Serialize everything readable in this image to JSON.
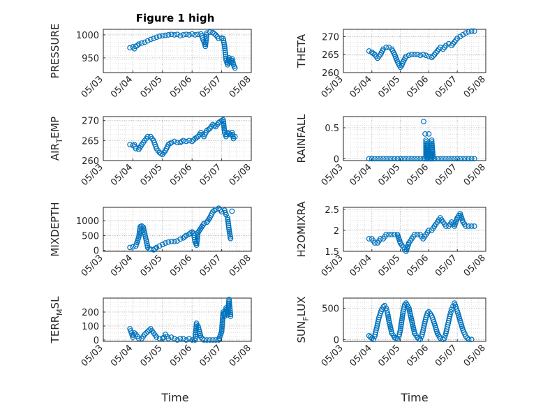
{
  "figure": {
    "title": "Figure 1 high",
    "marker_color": "#0072BD",
    "grid": "dotted",
    "xlabel": "Time",
    "x_tick_labels": [
      "05/03",
      "05/04",
      "05/05",
      "05/06",
      "05/07",
      "05/08"
    ]
  },
  "chart_data": [
    {
      "type": "scatter",
      "ylabel": "PRESSURE",
      "ylim": [
        918,
        1012
      ],
      "yticks": [
        950,
        1000
      ],
      "ytick_labels": [
        "950",
        "1000"
      ],
      "x": [
        3.9,
        4.0,
        4.05,
        4.1,
        4.15,
        4.2,
        4.3,
        4.4,
        4.5,
        4.6,
        4.7,
        4.8,
        4.9,
        5.0,
        5.1,
        5.2,
        5.3,
        5.4,
        5.5,
        5.6,
        5.7,
        5.8,
        5.9,
        6.0,
        6.1,
        6.2,
        6.3,
        6.4,
        6.45,
        6.5,
        6.6,
        6.7,
        6.8,
        6.9,
        7.0,
        7.05,
        7.1,
        7.15,
        7.2,
        7.25,
        7.3,
        7.35,
        7.4,
        7.45
      ],
      "y": [
        972,
        974,
        970,
        975,
        977,
        980,
        982,
        984,
        987,
        990,
        992,
        995,
        997,
        998,
        999,
        1000,
        1001,
        1000,
        1001,
        998,
        1000,
        1001,
        1000,
        1002,
        1000,
        1001,
        1002,
        985,
        975,
        1004,
        1006,
        1005,
        1000,
        992,
        993,
        992,
        975,
        945,
        935,
        950,
        940,
        948,
        935,
        928
      ]
    },
    {
      "type": "scatter",
      "ylabel": "THETA",
      "ylim": [
        260,
        272
      ],
      "yticks": [
        260,
        265,
        270
      ],
      "ytick_labels": [
        "260",
        "265",
        "270"
      ],
      "x": [
        3.9,
        4.0,
        4.1,
        4.2,
        4.3,
        4.4,
        4.5,
        4.6,
        4.7,
        4.8,
        4.9,
        5.0,
        5.05,
        5.1,
        5.2,
        5.3,
        5.4,
        5.5,
        5.6,
        5.7,
        5.8,
        5.9,
        6.0,
        6.1,
        6.2,
        6.3,
        6.4,
        6.5,
        6.6,
        6.7,
        6.8,
        6.9,
        7.0,
        7.1,
        7.2,
        7.3,
        7.4,
        7.5,
        7.6
      ],
      "y": [
        266,
        265.6,
        265,
        264,
        265,
        266.5,
        267,
        267,
        266.5,
        265,
        263,
        261.5,
        262,
        263,
        264.5,
        264.8,
        265,
        265,
        265,
        264.8,
        265,
        264.8,
        264.5,
        264.2,
        265,
        266,
        267,
        266.5,
        267.5,
        268,
        267.5,
        268.5,
        269.5,
        270,
        270.5,
        271,
        271.3,
        271.5,
        271.5
      ]
    },
    {
      "type": "scatter",
      "ylabel": "AIR_TEMP",
      "ylim": [
        260,
        271
      ],
      "yticks": [
        260,
        265,
        270
      ],
      "ytick_labels": [
        "260",
        "265",
        "270"
      ],
      "x": [
        3.9,
        4.0,
        4.05,
        4.1,
        4.2,
        4.3,
        4.4,
        4.5,
        4.6,
        4.7,
        4.8,
        4.9,
        5.0,
        5.1,
        5.2,
        5.3,
        5.4,
        5.5,
        5.6,
        5.7,
        5.8,
        5.9,
        6.0,
        6.1,
        6.2,
        6.3,
        6.4,
        6.5,
        6.6,
        6.7,
        6.8,
        6.9,
        7.0,
        7.05,
        7.1,
        7.15,
        7.2,
        7.3,
        7.35,
        7.4,
        7.45
      ],
      "y": [
        264,
        263.8,
        264,
        263,
        262.8,
        264,
        265,
        266,
        266,
        265,
        263,
        262,
        261.5,
        262.5,
        264,
        264.5,
        264.8,
        264.5,
        264.5,
        265,
        264.8,
        265,
        264.8,
        265.5,
        266,
        267,
        266,
        267.5,
        268,
        269,
        268.5,
        269.5,
        270,
        270.2,
        267,
        266,
        267,
        266.5,
        267,
        265.5,
        266
      ]
    },
    {
      "type": "scatter",
      "ylabel": "RAINFALL",
      "ylim": [
        -0.03,
        0.68
      ],
      "yticks": [
        0,
        0.5
      ],
      "ytick_labels": [
        "0",
        "0.5"
      ],
      "x": [
        3.9,
        4.0,
        4.1,
        4.2,
        4.3,
        4.4,
        4.5,
        4.6,
        4.7,
        4.8,
        4.9,
        5.0,
        5.1,
        5.2,
        5.3,
        5.4,
        5.5,
        5.6,
        5.7,
        5.8,
        5.85,
        5.9,
        5.95,
        6.0,
        6.05,
        6.1,
        6.15,
        6.2,
        6.3,
        6.4,
        6.5,
        6.6,
        6.7,
        6.8,
        6.9,
        7.0,
        7.1,
        7.2,
        7.3,
        7.4,
        7.5,
        7.6,
        5.82,
        5.87,
        5.9,
        5.95,
        6.0,
        6.05,
        6.1
      ],
      "y": [
        0,
        0,
        0,
        0,
        0,
        0,
        0,
        0,
        0,
        0,
        0,
        0,
        0,
        0,
        0,
        0,
        0,
        0,
        0,
        0,
        0,
        0,
        0,
        0,
        0,
        0,
        0,
        0,
        0,
        0,
        0,
        0,
        0,
        0,
        0,
        0,
        0,
        0,
        0,
        0,
        0,
        0,
        0.6,
        0.4,
        0.3,
        0.2,
        0.4,
        0.1,
        0.3
      ]
    },
    {
      "type": "scatter",
      "ylabel": "MIXDEPTH",
      "ylim": [
        -30,
        1450
      ],
      "yticks": [
        0,
        500,
        1000
      ],
      "ytick_labels": [
        "0",
        "500",
        "1000"
      ],
      "x": [
        3.9,
        4.0,
        4.1,
        4.2,
        4.25,
        4.3,
        4.35,
        4.4,
        4.45,
        4.5,
        4.55,
        4.6,
        4.7,
        4.8,
        4.9,
        5.0,
        5.1,
        5.2,
        5.3,
        5.4,
        5.5,
        5.6,
        5.7,
        5.8,
        5.9,
        6.0,
        6.05,
        6.1,
        6.15,
        6.2,
        6.3,
        6.4,
        6.5,
        6.6,
        6.7,
        6.8,
        6.9,
        7.0,
        7.1,
        7.15,
        7.2,
        7.25,
        7.3,
        7.35
      ],
      "y": [
        100,
        120,
        150,
        450,
        800,
        820,
        780,
        550,
        350,
        100,
        50,
        40,
        20,
        100,
        150,
        200,
        250,
        280,
        300,
        300,
        320,
        380,
        420,
        500,
        550,
        620,
        580,
        300,
        180,
        600,
        750,
        900,
        950,
        1100,
        1300,
        1380,
        1420,
        1300,
        1350,
        1200,
        1100,
        700,
        400,
        1320
      ]
    },
    {
      "type": "scatter",
      "ylabel": "H2OMIXRA",
      "ylim": [
        1.5,
        2.55
      ],
      "yticks": [
        1.5,
        2,
        2.5
      ],
      "ytick_labels": [
        "1.5",
        "2",
        "2.5"
      ],
      "x": [
        3.9,
        4.0,
        4.1,
        4.2,
        4.3,
        4.4,
        4.5,
        4.6,
        4.7,
        4.8,
        4.9,
        5.0,
        5.1,
        5.2,
        5.3,
        5.4,
        5.5,
        5.6,
        5.7,
        5.8,
        5.9,
        6.0,
        6.1,
        6.2,
        6.3,
        6.4,
        6.5,
        6.6,
        6.7,
        6.8,
        6.9,
        7.0,
        7.1,
        7.2,
        7.3,
        7.4,
        7.5,
        7.6
      ],
      "y": [
        1.8,
        1.8,
        1.7,
        1.7,
        1.8,
        1.8,
        1.9,
        1.9,
        1.9,
        1.9,
        1.9,
        1.7,
        1.6,
        1.5,
        1.7,
        1.8,
        1.9,
        1.9,
        1.9,
        1.8,
        1.9,
        2.0,
        2.0,
        2.1,
        2.2,
        2.3,
        2.2,
        2.1,
        2.1,
        2.2,
        2.1,
        2.3,
        2.4,
        2.2,
        2.1,
        2.1,
        2.1,
        2.1
      ]
    },
    {
      "type": "scatter",
      "ylabel": "TERR_MSL",
      "ylim": [
        -10,
        300
      ],
      "yticks": [
        0,
        100,
        200
      ],
      "ytick_labels": [
        "0",
        "100",
        "200"
      ],
      "x": [
        3.9,
        3.95,
        4.0,
        4.05,
        4.1,
        4.2,
        4.3,
        4.4,
        4.5,
        4.6,
        4.7,
        4.8,
        4.9,
        5.0,
        5.05,
        5.1,
        5.2,
        5.3,
        5.4,
        5.5,
        5.6,
        5.7,
        5.8,
        5.9,
        6.0,
        6.1,
        6.15,
        6.2,
        6.3,
        6.4,
        6.5,
        6.6,
        6.7,
        6.8,
        6.9,
        7.0,
        7.05,
        7.1,
        7.15,
        7.2,
        7.25,
        7.3
      ],
      "y": [
        80,
        50,
        20,
        50,
        40,
        10,
        10,
        40,
        60,
        80,
        50,
        20,
        10,
        10,
        20,
        40,
        10,
        20,
        10,
        0,
        10,
        10,
        0,
        10,
        0,
        0,
        120,
        100,
        20,
        0,
        0,
        0,
        0,
        0,
        0,
        60,
        200,
        170,
        230,
        180,
        290,
        170
      ]
    },
    {
      "type": "scatter",
      "ylabel": "SUN_FLUX",
      "ylim": [
        -30,
        660
      ],
      "yticks": [
        0,
        500
      ],
      "ytick_labels": [
        "0",
        "500"
      ],
      "x": [
        3.9,
        4.0,
        4.05,
        4.1,
        4.15,
        4.2,
        4.25,
        4.3,
        4.35,
        4.4,
        4.45,
        4.5,
        4.55,
        4.6,
        4.7,
        4.8,
        4.85,
        4.9,
        4.95,
        5.0,
        5.05,
        5.1,
        5.15,
        5.2,
        5.3,
        5.4,
        5.5,
        5.6,
        5.65,
        5.7,
        5.75,
        5.8,
        5.85,
        5.9,
        5.95,
        6.0,
        6.1,
        6.2,
        6.3,
        6.4,
        6.5,
        6.55,
        6.6,
        6.65,
        6.7,
        6.75,
        6.8,
        6.85,
        6.9,
        6.95,
        7.0,
        7.1,
        7.2,
        7.3,
        7.4,
        7.5
      ],
      "y": [
        60,
        20,
        0,
        50,
        150,
        250,
        350,
        420,
        480,
        520,
        540,
        500,
        420,
        300,
        100,
        30,
        20,
        10,
        50,
        150,
        300,
        450,
        550,
        580,
        500,
        300,
        100,
        30,
        10,
        0,
        50,
        150,
        250,
        350,
        420,
        440,
        380,
        250,
        100,
        20,
        0,
        20,
        100,
        200,
        300,
        400,
        480,
        530,
        580,
        520,
        450,
        300,
        150,
        50,
        0,
        0
      ]
    }
  ]
}
